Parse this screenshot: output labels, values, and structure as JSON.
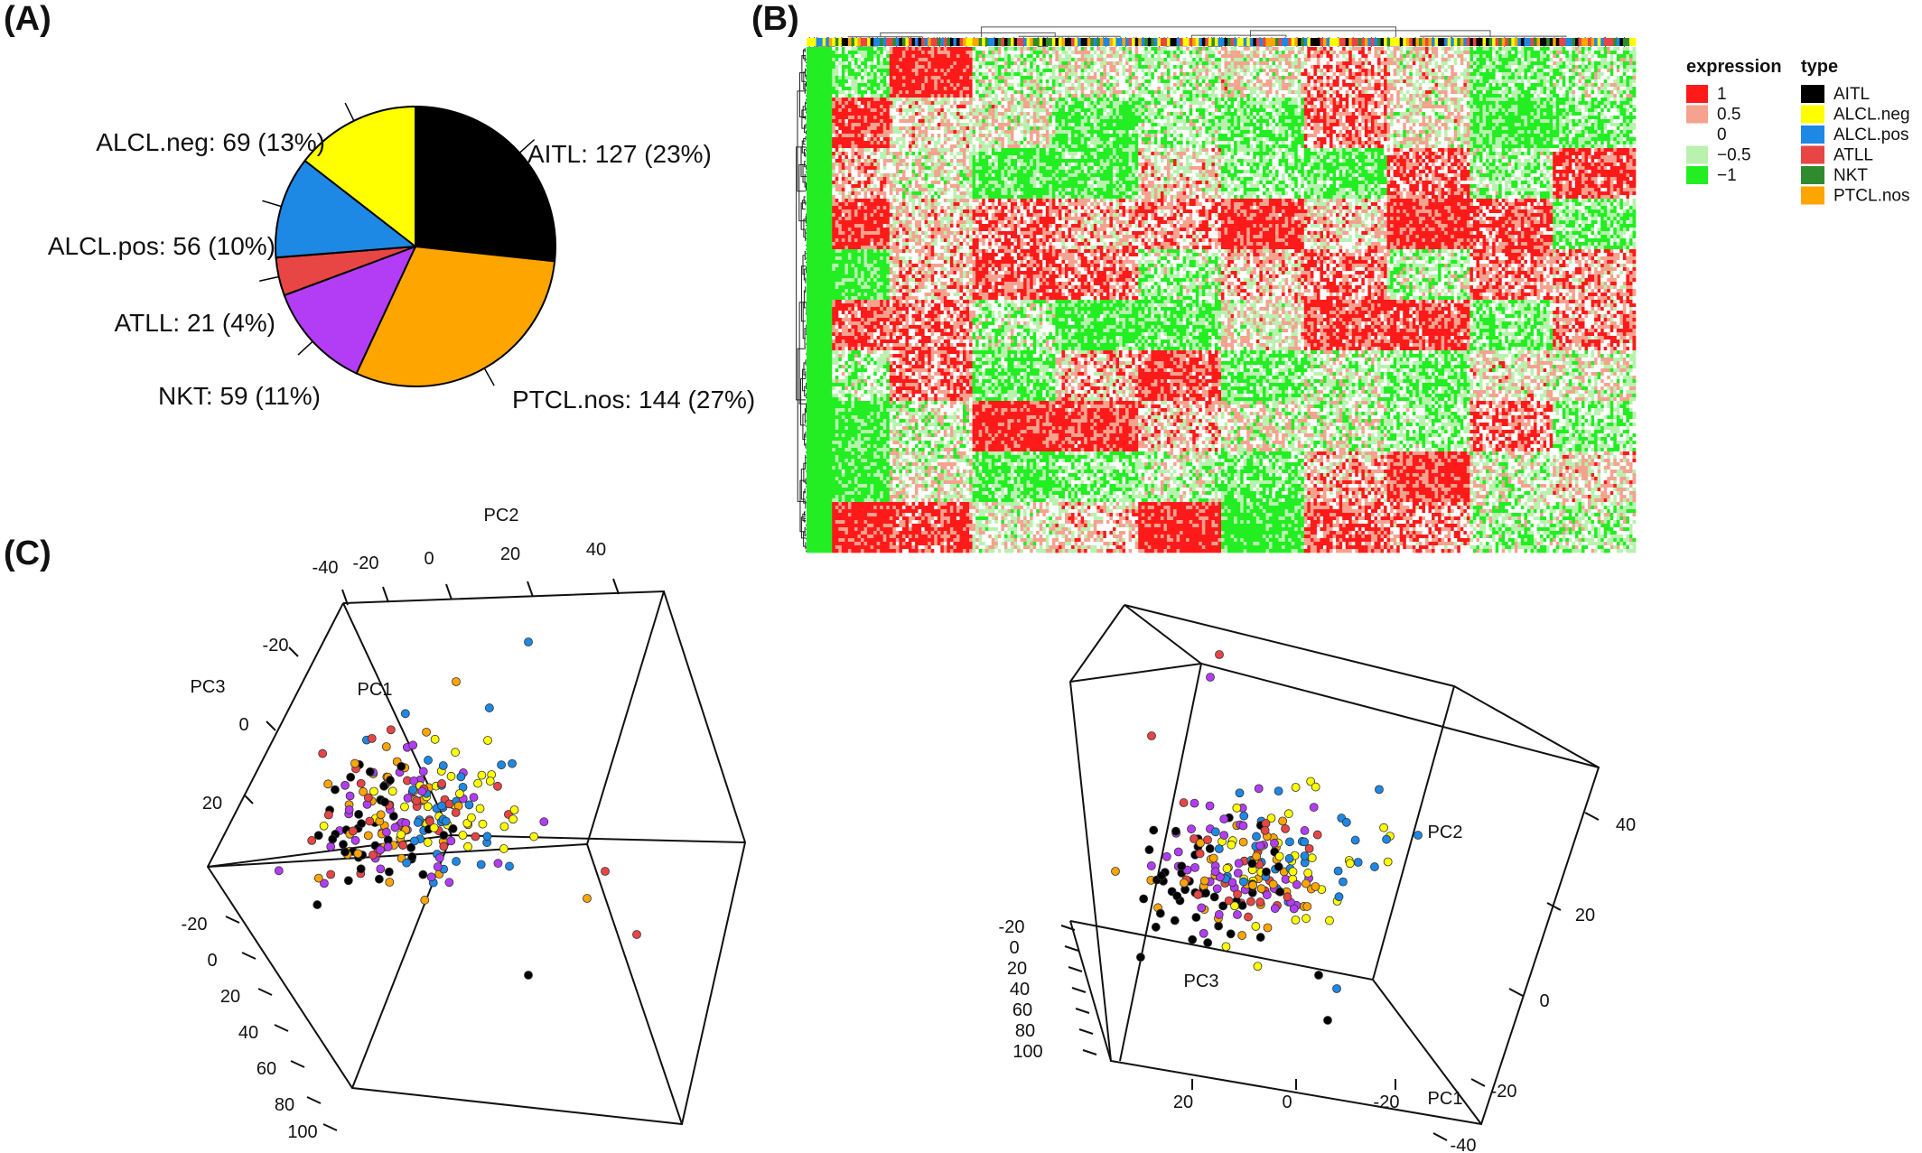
{
  "panels": {
    "a": "(A)",
    "b": "(B)",
    "c": "(C)"
  },
  "chart_data": [
    {
      "type": "pie",
      "categories": [
        "AITL",
        "PTCL.nos",
        "NKT",
        "ATLL",
        "ALCL.pos",
        "ALCL.neg"
      ],
      "values": [
        127,
        144,
        59,
        21,
        56,
        69
      ],
      "labels": [
        "AITL: 127 (23%)",
        "PTCL.nos: 144 (27%)",
        "NKT: 59 (11%)",
        "ATLL: 21 (4%)",
        "ALCL.pos: 56 (10%)",
        "ALCL.neg: 69 (13%)"
      ],
      "colors": [
        "#000000",
        "#FFA500",
        "#B33DF5",
        "#E84545",
        "#1E88E5",
        "#FFFF00"
      ]
    },
    {
      "type": "heatmap",
      "legend_expression": {
        "title": "expression",
        "entries": [
          {
            "label": "1",
            "color": "#FF1A1A"
          },
          {
            "label": "0.5",
            "color": "#F5A28F"
          },
          {
            "label": "0",
            "color": "#FFFFFF"
          },
          {
            "label": "−0.5",
            "color": "#B8F2AE"
          },
          {
            "label": "−1",
            "color": "#22EE22"
          }
        ]
      },
      "legend_type": {
        "title": "type",
        "entries": [
          {
            "label": "AITL",
            "color": "#000000"
          },
          {
            "label": "ALCL.neg",
            "color": "#FFFF00"
          },
          {
            "label": "ALCL.pos",
            "color": "#1E88E5"
          },
          {
            "label": "ATLL",
            "color": "#E84545"
          },
          {
            "label": "NKT",
            "color": "#2E8B2E"
          },
          {
            "label": "PTCL.nos",
            "color": "#FFA500"
          }
        ]
      }
    },
    {
      "type": "scatter",
      "view": "left",
      "axes": {
        "pc1": "PC1",
        "pc2": "PC2",
        "pc3": "PC3",
        "pc2_ticks": [
          "-40",
          "-20",
          "0",
          "20",
          "40"
        ],
        "pc3_ticks": [
          "-20",
          "0",
          "20"
        ],
        "pc1_ticks": [
          "-20",
          "0",
          "20",
          "40",
          "60",
          "80",
          "100"
        ]
      }
    },
    {
      "type": "scatter",
      "view": "right",
      "axes": {
        "pc1": "PC1",
        "pc2": "PC2",
        "pc3": "PC3",
        "pc3_ticks": [
          "-20",
          "0",
          "20",
          "40",
          "60",
          "80",
          "100"
        ],
        "pc2_ticks": [
          "40",
          "20",
          "0",
          "-20",
          "-40"
        ],
        "pc1_ticks": [
          "20",
          "0",
          "-20"
        ]
      }
    }
  ]
}
